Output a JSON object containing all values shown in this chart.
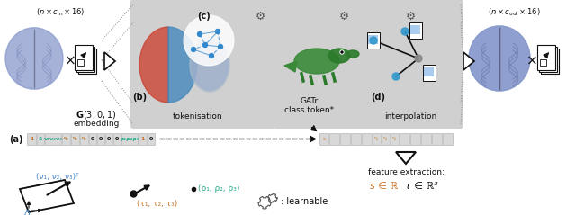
{
  "bg": "#ffffff",
  "gray_sec": "#d0d0d0",
  "cell_bg": "#d8d8d8",
  "cell_border": "#aaaaaa",
  "orange": "#c8782a",
  "teal": "#2aaa8c",
  "blue": "#4488cc",
  "dark": "#111111",
  "mgray": "#888888",
  "top_left": "(n × cᴵⁿ × 16)",
  "top_right": "(n × cₒᵘₜ × 16)",
  "G1": "G(3, 0, 1)",
  "G2": "embedding",
  "tok": "tokenisation",
  "gatr1": "GATr",
  "gatr2": "class token*",
  "interp": "interpolation",
  "feat": "feature extraction:",
  "s_in_R": "s ∈ ℝ",
  "tau_in_R3": "τ ∈ ℝ³",
  "learnable": ": learnable",
  "nu_T": "(ν₁, ν₂, ν₃)ᵀ",
  "tau_xyz": "(τ₁, τ₂, τ₃)",
  "rho_xyz": "(ρ₁, ρ₂, ρ₃)",
  "delta": "δ",
  "label_a": "(a)",
  "label_b": "(b)",
  "label_c": "(c)",
  "label_d": "(d)"
}
